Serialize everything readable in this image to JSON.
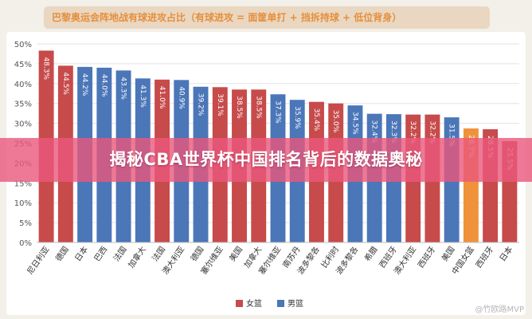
{
  "header": {
    "title": "巴黎奥运会阵地战有球进攻占比（有球进攻 = 面筐单打 + 挡拆持球 + 低位背身）"
  },
  "banner": {
    "text": "揭秘CBA世界杯中国排名背后的数据奥秘"
  },
  "watermark": {
    "text": "@竹欧路MVP"
  },
  "colors": {
    "women": "#c74b4b",
    "men": "#4b76b8",
    "china_women": "#f0923c",
    "grid": "#e3e3e3",
    "axis_text": "#555555"
  },
  "chart_data": {
    "type": "bar",
    "title": "巴黎奥运会阵地战有球进攻占比（有球进攻 = 面筐单打 + 挡拆持球 + 低位背身）",
    "xlabel": "",
    "ylabel": "",
    "ylim": [
      0,
      50
    ],
    "yticks": [
      "0%",
      "5%",
      "10%",
      "15%",
      "20%",
      "25%",
      "30%",
      "35%",
      "40%",
      "45%",
      "50%"
    ],
    "grid": true,
    "legend_position": "bottom",
    "legend": [
      {
        "name": "女篮",
        "color": "#c74b4b"
      },
      {
        "name": "男篮",
        "color": "#4b76b8"
      }
    ],
    "categories": [
      "尼日利亚",
      "德国",
      "日本",
      "巴西",
      "法国",
      "加拿大",
      "法国",
      "澳大利亚",
      "德国",
      "塞尔维亚",
      "美国",
      "加拿大",
      "塞尔维亚",
      "南苏丹",
      "波多黎各",
      "比利时",
      "波多黎各",
      "希腊",
      "西班牙",
      "澳大利亚",
      "西班牙",
      "美国",
      "中国女篮",
      "西班牙",
      "日本"
    ],
    "values": [
      48.3,
      44.5,
      44.2,
      44.0,
      43.3,
      41.3,
      41.0,
      40.9,
      39.2,
      39.1,
      38.5,
      38.5,
      37.3,
      35.9,
      35.4,
      35.0,
      34.5,
      32.4,
      32.3,
      32.2,
      32.2,
      31.5,
      28.7,
      28.5,
      25.5
    ],
    "groups": [
      "女篮",
      "女篮",
      "男篮",
      "男篮",
      "男篮",
      "男篮",
      "女篮",
      "男篮",
      "男篮",
      "女篮",
      "女篮",
      "女篮",
      "男篮",
      "男篮",
      "女篮",
      "女篮",
      "男篮",
      "男篮",
      "男篮",
      "女篮",
      "女篮",
      "男篮",
      "女篮",
      "女篮",
      "女篮"
    ],
    "data_labels": [
      "48.3%",
      "44.5%",
      "44.2%",
      "44.0%",
      "43.3%",
      "41.3%",
      "41.0%",
      "40.9%",
      "39.2%",
      "39.1%",
      "38.5%",
      "38.5%",
      "37.3%",
      "35.9%",
      "35.4%",
      "35.0%",
      "34.5%",
      "32.4%",
      "32.3%",
      "32.2%",
      "32.2%",
      "31.5%",
      "28.7%",
      "28.5%",
      "25.5%"
    ],
    "highlight_index": 22
  }
}
